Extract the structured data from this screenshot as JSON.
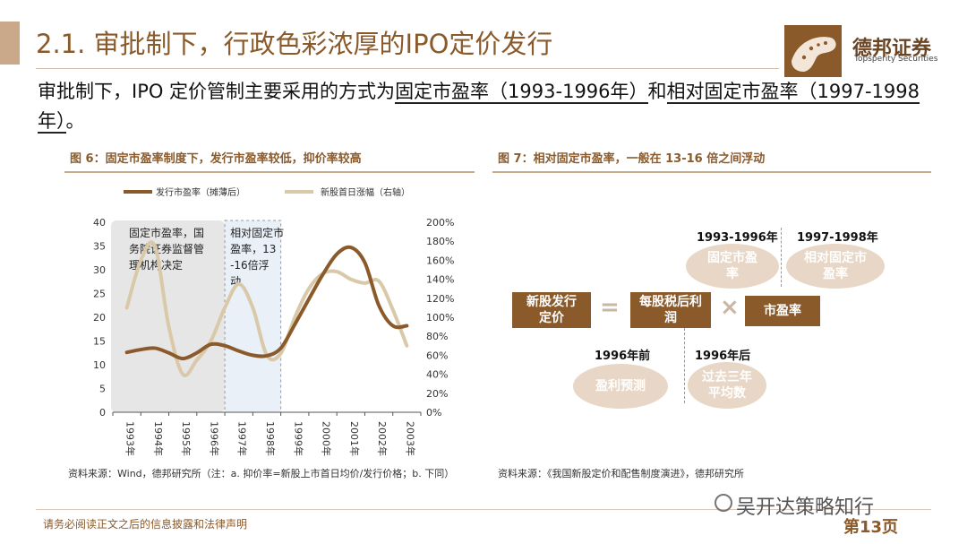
{
  "header": {
    "title": "2.1. 审批制下，行政色彩浓厚的IPO定价发行",
    "logo_name": "德邦证券",
    "logo_sub": "Topsperity Securities"
  },
  "intro": {
    "part1": "审批制下，IPO 定价管制主要采用的方式为",
    "u1": "固定市盈率（1993-1996年）",
    "part2": "和",
    "u2": "相对固定市盈率（1997-1998年）",
    "part3": "。"
  },
  "figure6": {
    "title": "图 6：固定市盈率制度下，发行市盈率较低，抑价率较高",
    "source": "资料来源：Wind，德邦研究所（注：a. 抑价率=新股上市首日均价/发行价格；b. 下同）"
  },
  "figure7": {
    "title": "图 7：相对固定市盈率，一般在 13-16 倍之间浮动",
    "source": "资料来源：《我国新股定价和配售制度演进》，德邦研究所",
    "labels": {
      "period1": "1993-1996年",
      "period2": "1997-1998年",
      "before": "1996年前",
      "after": "1996年后"
    },
    "nodes": {
      "fixed_pe": "固定市盈率",
      "relative_pe": "相对固定市盈率",
      "new_issue_price": "新股发行定价",
      "eps": "每股税后利润",
      "pe": "市盈率",
      "profit_forecast": "盈利预测",
      "avg3": "过去三年平均数"
    },
    "ops": {
      "equals": "=",
      "times": "×"
    }
  },
  "chart_data": {
    "type": "line",
    "title": "",
    "legend": [
      "发行市盈率（摊薄后）",
      "新股首日涨幅（右轴）"
    ],
    "categories": [
      "1993年",
      "1994年",
      "1995年",
      "1996年",
      "1997年",
      "1998年",
      "1999年",
      "2000年",
      "2001年",
      "2002年",
      "2003年"
    ],
    "y_left": {
      "ticks": [
        "0",
        "5",
        "10",
        "15",
        "20",
        "25",
        "30",
        "35",
        "40"
      ],
      "ylim": [
        0,
        40
      ]
    },
    "y_right": {
      "ticks": [
        "0%",
        "20%",
        "40%",
        "60%",
        "80%",
        "100%",
        "120%",
        "140%",
        "160%",
        "180%",
        "200%"
      ],
      "ylim": [
        0,
        200
      ]
    },
    "series": [
      {
        "name": "发行市盈率（摊薄后）",
        "axis": "left",
        "color": "#8b5a2b",
        "x": [
          0,
          0.5,
          1,
          1.5,
          2,
          2.5,
          3,
          3.5,
          4,
          4.5,
          5,
          5.5,
          6,
          6.5,
          7,
          7.5,
          8,
          8.5,
          9,
          9.5,
          10
        ],
        "values": [
          12.6,
          13.2,
          13.5,
          12.5,
          11.3,
          12.5,
          14.3,
          14.0,
          12.9,
          12.0,
          11.9,
          13.5,
          18.5,
          23.8,
          29.0,
          33.3,
          34.7,
          31.5,
          22.5,
          18.2,
          18.2
        ]
      },
      {
        "name": "新股首日涨幅（右轴）",
        "axis": "right",
        "color": "#d9c9a8",
        "x": [
          0,
          0.5,
          1,
          1.5,
          2,
          2.5,
          3,
          3.5,
          4,
          4.5,
          5,
          5.5,
          6,
          6.5,
          7,
          7.5,
          8,
          8.5,
          9,
          9.5,
          10
        ],
        "values": [
          110,
          160,
          175,
          90,
          40,
          55,
          75,
          110,
          135,
          110,
          60,
          62,
          100,
          130,
          146,
          148,
          140,
          136,
          138,
          108,
          70
        ]
      }
    ],
    "annotations": [
      {
        "text": "固定市盈率，国务院证券监督管理机构决定",
        "region": [
          "1993年",
          "1996年"
        ]
      },
      {
        "text": "相对固定市盈率，13-16倍浮动",
        "region": [
          "1997年",
          "1998年"
        ]
      }
    ]
  },
  "footer": {
    "disclaimer": "请务必阅读正文之后的信息披露和法律声明",
    "watermark": "吴开达策略知行",
    "page": "第13页"
  }
}
